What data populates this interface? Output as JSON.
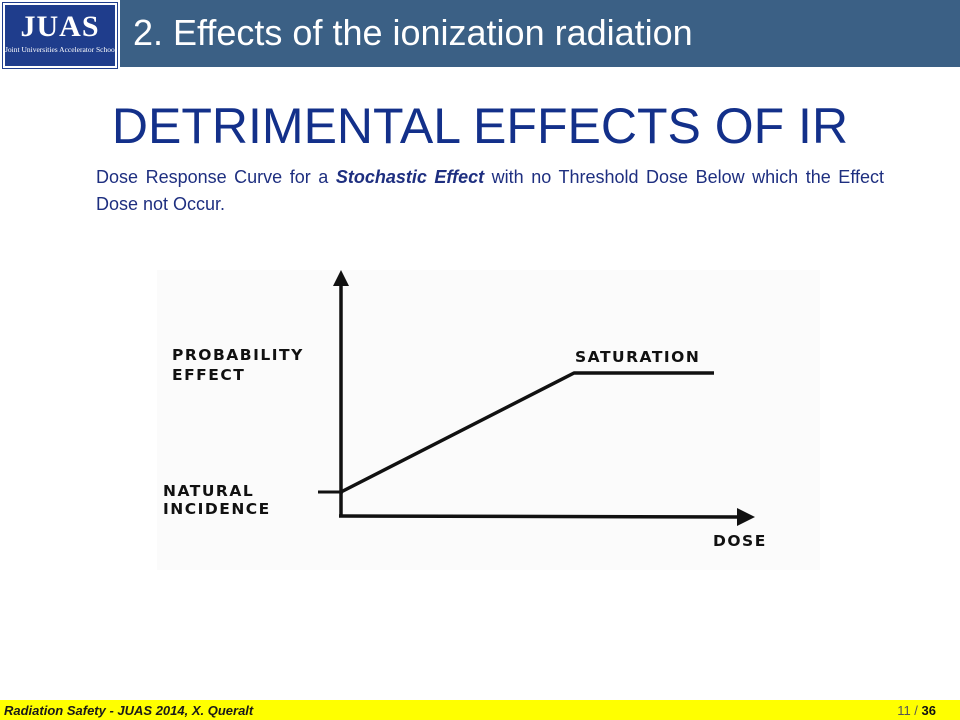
{
  "logo": {
    "main_text": "JUAS",
    "sub_text": "Joint Universities Accelerator School"
  },
  "header": {
    "title": "2. Effects of the ionization radiation"
  },
  "slide": {
    "title": "DETRIMENTAL EFFECTS OF  IR",
    "caption_before": "Dose Response Curve for a ",
    "caption_emphasis": "Stochastic Effect",
    "caption_after": " with no Threshold Dose Below which the Effect Dose not Occur."
  },
  "figure": {
    "y_label_line1": "PROBABILITY",
    "y_label_line2": "EFFECT",
    "baseline_label_line1": "NATURAL",
    "baseline_label_line2": "INCIDENCE",
    "plateau_label": "SATURATION",
    "x_label": "DOSE"
  },
  "chart_data": {
    "type": "line",
    "xlabel": "DOSE",
    "ylabel": "PROBABILITY EFFECT",
    "annotations": [
      "NATURAL INCIDENCE",
      "SATURATION"
    ],
    "series": [
      {
        "shape": [
          "linear rise from natural incidence at zero dose",
          "flat saturation plateau"
        ]
      }
    ]
  },
  "footer": {
    "text": "Radiation Safety - JUAS 2014,  X. Queralt",
    "page_current": "11 / ",
    "page_total": "36"
  },
  "colors": {
    "header_bar": "#3b6085",
    "title": "#13308a",
    "caption": "#1e2f80",
    "footer_bar": "#ffff00",
    "logo": "#1f3d8c"
  }
}
